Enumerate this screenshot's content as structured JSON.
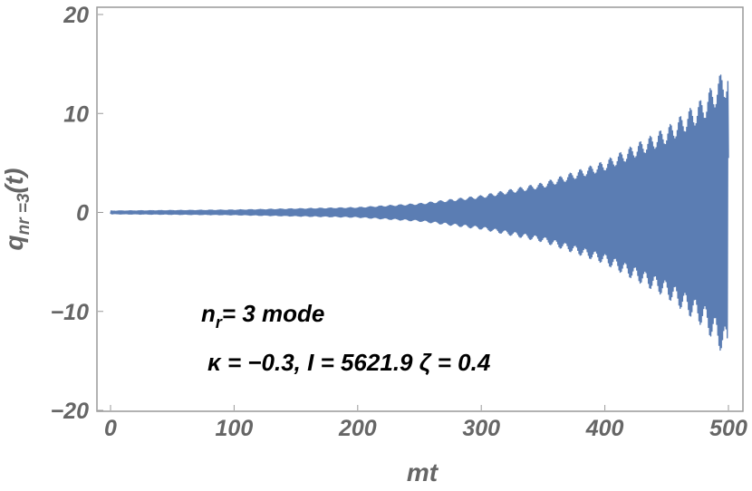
{
  "chart_data": {
    "type": "line",
    "title": "",
    "xlabel": "mt",
    "ylabel": {
      "main": "q",
      "subscript": "nr =3",
      "suffix": "(t)"
    },
    "xlim": [
      0,
      500
    ],
    "ylim": [
      -20,
      20
    ],
    "xticks": [
      0,
      100,
      200,
      300,
      400,
      500
    ],
    "yticks": [
      20,
      10,
      0,
      -10,
      -20
    ],
    "ytick_labels": [
      "20",
      "10",
      "0",
      "−10",
      "−20"
    ],
    "grid": false,
    "colors": {
      "series": "#5b7db3",
      "frame": "#999999",
      "tick_text": "#666666"
    },
    "series": [
      {
        "description": "rapidly oscillating signal with growing amplitude envelope",
        "envelope_t": [
          0,
          100,
          200,
          250,
          300,
          350,
          400,
          450,
          480,
          495,
          500
        ],
        "envelope_amplitude": [
          0.15,
          0.25,
          0.5,
          0.9,
          1.7,
          3.0,
          5.2,
          8.6,
          11.6,
          14.2,
          14.5
        ],
        "end_value": 5.5
      }
    ],
    "annotations": {
      "line1": {
        "main": "n",
        "subscript": "r",
        "rest": "= 3 mode"
      },
      "line2": "κ  = −0.3, I = 5621.9 ζ  = 0.4"
    }
  }
}
